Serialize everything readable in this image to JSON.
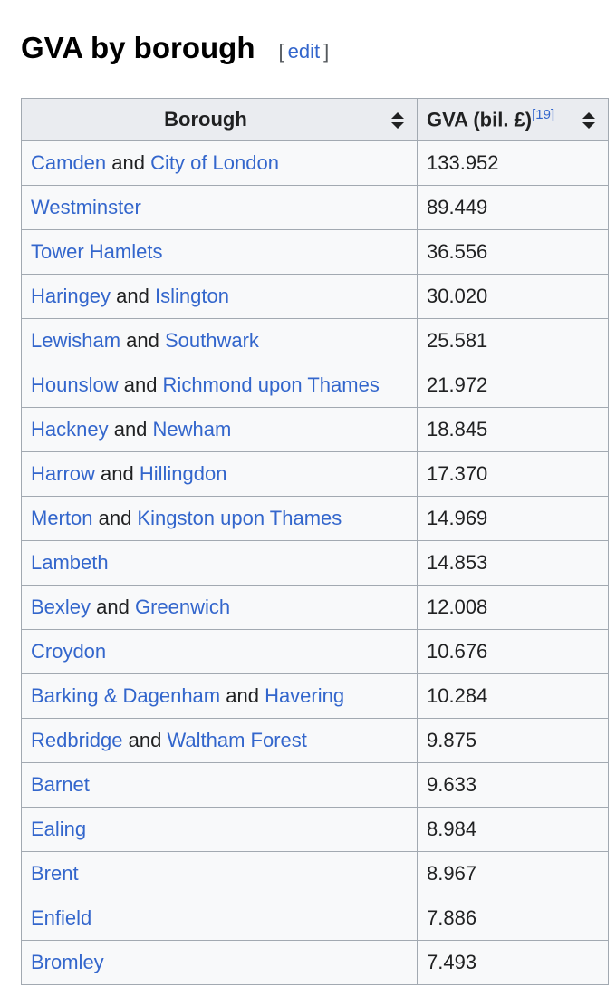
{
  "heading": {
    "title": "GVA by borough",
    "edit_open": "[",
    "edit_label": "edit",
    "edit_close": "]"
  },
  "table": {
    "headers": {
      "borough": "Borough",
      "gva": "GVA (bil. £)",
      "gva_ref": "[19]"
    },
    "rows": [
      {
        "borough": [
          {
            "text": "Camden",
            "link": true
          },
          {
            "text": " and ",
            "link": false
          },
          {
            "text": "City of London",
            "link": true
          }
        ],
        "gva": "133.952"
      },
      {
        "borough": [
          {
            "text": "Westminster",
            "link": true
          }
        ],
        "gva": "89.449"
      },
      {
        "borough": [
          {
            "text": "Tower Hamlets",
            "link": true
          }
        ],
        "gva": "36.556"
      },
      {
        "borough": [
          {
            "text": "Haringey",
            "link": true
          },
          {
            "text": " and ",
            "link": false
          },
          {
            "text": "Islington",
            "link": true
          }
        ],
        "gva": "30.020"
      },
      {
        "borough": [
          {
            "text": "Lewisham",
            "link": true
          },
          {
            "text": " and ",
            "link": false
          },
          {
            "text": "Southwark",
            "link": true
          }
        ],
        "gva": "25.581"
      },
      {
        "borough": [
          {
            "text": "Hounslow",
            "link": true
          },
          {
            "text": " and ",
            "link": false
          },
          {
            "text": "Richmond upon Thames",
            "link": true
          }
        ],
        "gva": "21.972"
      },
      {
        "borough": [
          {
            "text": "Hackney",
            "link": true
          },
          {
            "text": " and ",
            "link": false
          },
          {
            "text": "Newham",
            "link": true
          }
        ],
        "gva": "18.845"
      },
      {
        "borough": [
          {
            "text": "Harrow",
            "link": true
          },
          {
            "text": " and ",
            "link": false
          },
          {
            "text": "Hillingdon",
            "link": true
          }
        ],
        "gva": "17.370"
      },
      {
        "borough": [
          {
            "text": "Merton",
            "link": true
          },
          {
            "text": " and ",
            "link": false
          },
          {
            "text": "Kingston upon Thames",
            "link": true
          }
        ],
        "gva": "14.969"
      },
      {
        "borough": [
          {
            "text": "Lambeth",
            "link": true
          }
        ],
        "gva": "14.853"
      },
      {
        "borough": [
          {
            "text": "Bexley",
            "link": true
          },
          {
            "text": " and ",
            "link": false
          },
          {
            "text": "Greenwich",
            "link": true
          }
        ],
        "gva": "12.008"
      },
      {
        "borough": [
          {
            "text": "Croydon",
            "link": true
          }
        ],
        "gva": "10.676"
      },
      {
        "borough": [
          {
            "text": "Barking & Dagenham",
            "link": true
          },
          {
            "text": " and ",
            "link": false
          },
          {
            "text": "Havering",
            "link": true
          }
        ],
        "gva": "10.284"
      },
      {
        "borough": [
          {
            "text": "Redbridge",
            "link": true
          },
          {
            "text": " and ",
            "link": false
          },
          {
            "text": "Waltham Forest",
            "link": true
          }
        ],
        "gva": "9.875"
      },
      {
        "borough": [
          {
            "text": "Barnet",
            "link": true
          }
        ],
        "gva": "9.633"
      },
      {
        "borough": [
          {
            "text": "Ealing",
            "link": true
          }
        ],
        "gva": "8.984"
      },
      {
        "borough": [
          {
            "text": "Brent",
            "link": true
          }
        ],
        "gva": "8.967"
      },
      {
        "borough": [
          {
            "text": "Enfield",
            "link": true
          }
        ],
        "gva": "7.886"
      },
      {
        "borough": [
          {
            "text": "Bromley",
            "link": true
          }
        ],
        "gva": "7.493"
      }
    ]
  },
  "colors": {
    "link": "#3366cc",
    "border": "#a2a9b1",
    "header_bg": "#eaecf0",
    "cell_bg": "#f8f9fa"
  },
  "icons": {
    "sort": "sort-up-down-icon"
  }
}
